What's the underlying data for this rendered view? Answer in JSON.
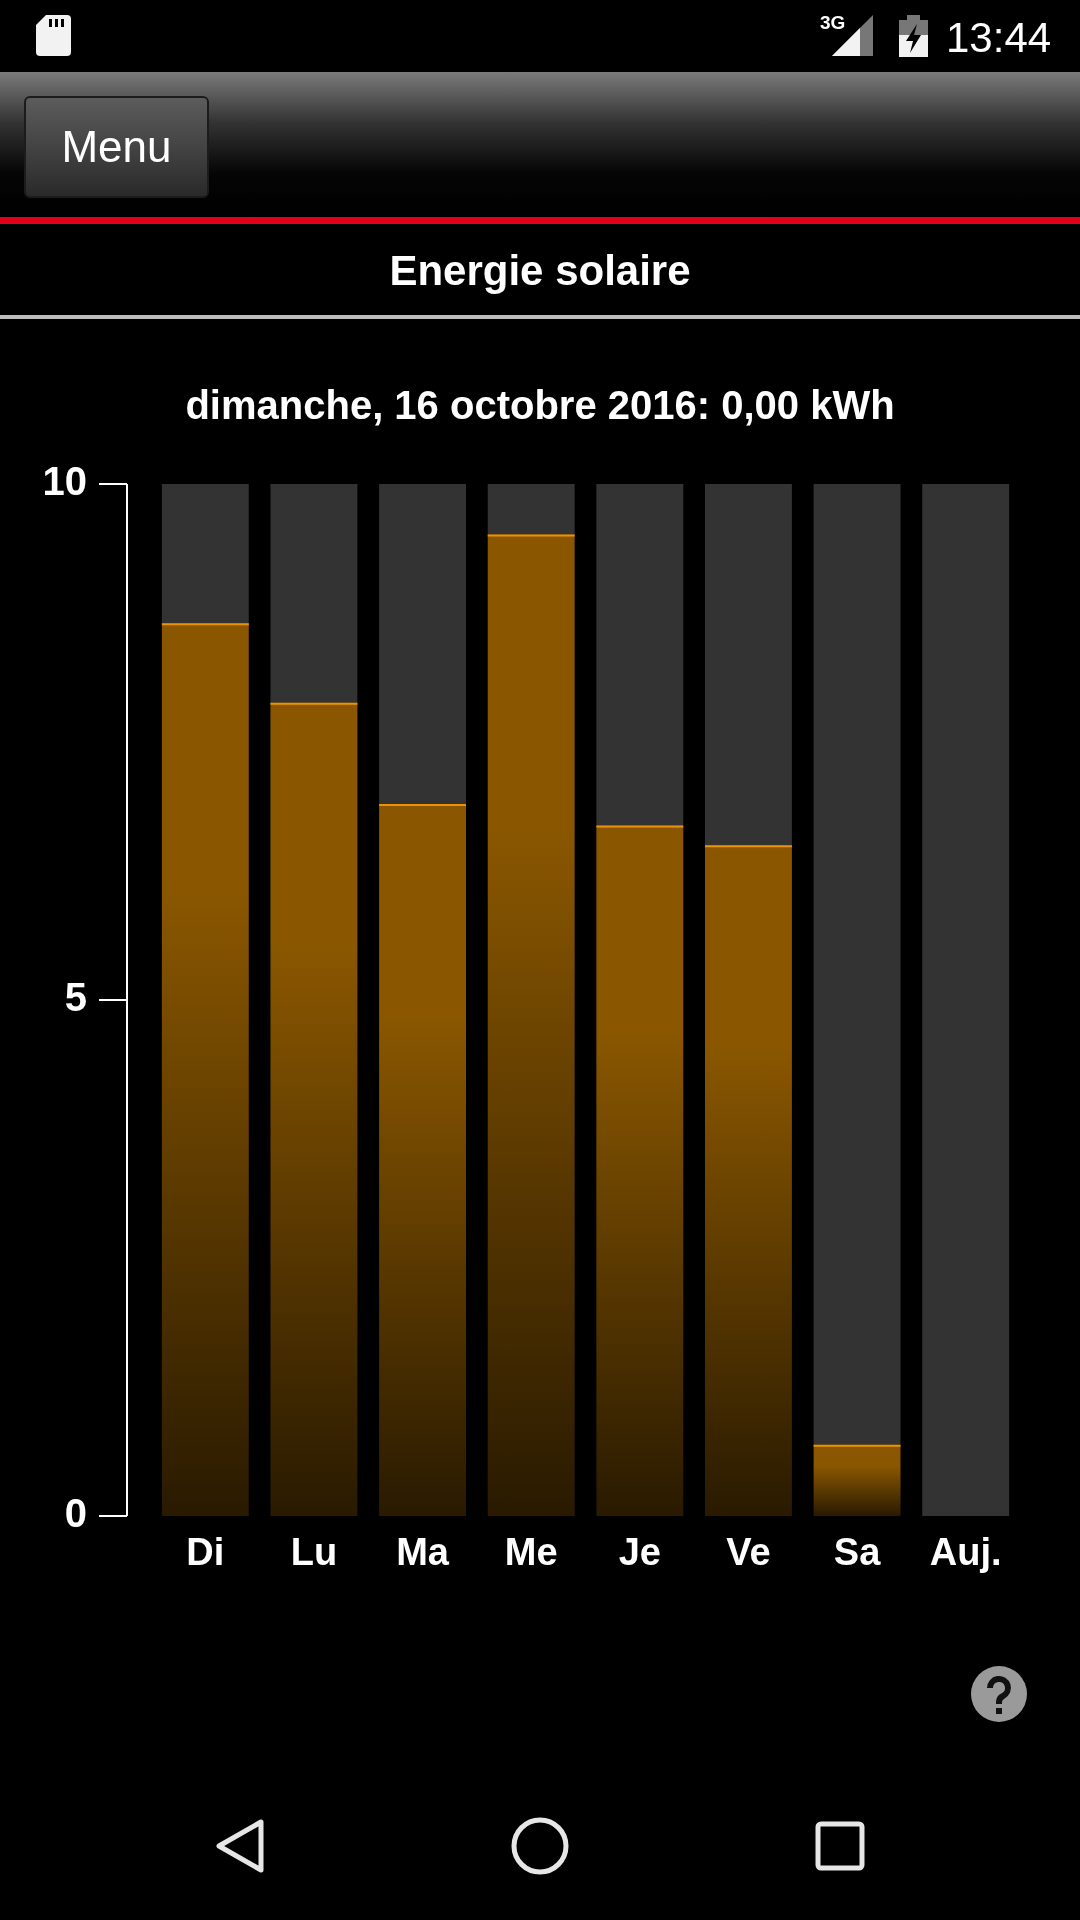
{
  "chart_data": {
    "type": "bar",
    "title": "Energie solaire",
    "subtitle": "dimanche, 16 octobre 2016: 0,00 kWh",
    "categories": [
      "Di",
      "Lu",
      "Ma",
      "Me",
      "Je",
      "Ve",
      "Sa",
      "Auj."
    ],
    "stacked": true,
    "series": [
      {
        "color": "#8a5700",
        "values": [
          8.65,
          7.88,
          6.9,
          9.51,
          6.69,
          6.5,
          0.69,
          0
        ]
      },
      {
        "color": "#333333",
        "values": [
          1.35,
          2.12,
          3.1,
          0.49,
          3.31,
          3.5,
          9.31,
          10
        ]
      }
    ],
    "ylim": [
      0,
      10
    ],
    "yticks": [
      0,
      5,
      10
    ],
    "grid": false,
    "legend": false,
    "annotations": [
      "Menu",
      "3G",
      "13:44"
    ]
  }
}
